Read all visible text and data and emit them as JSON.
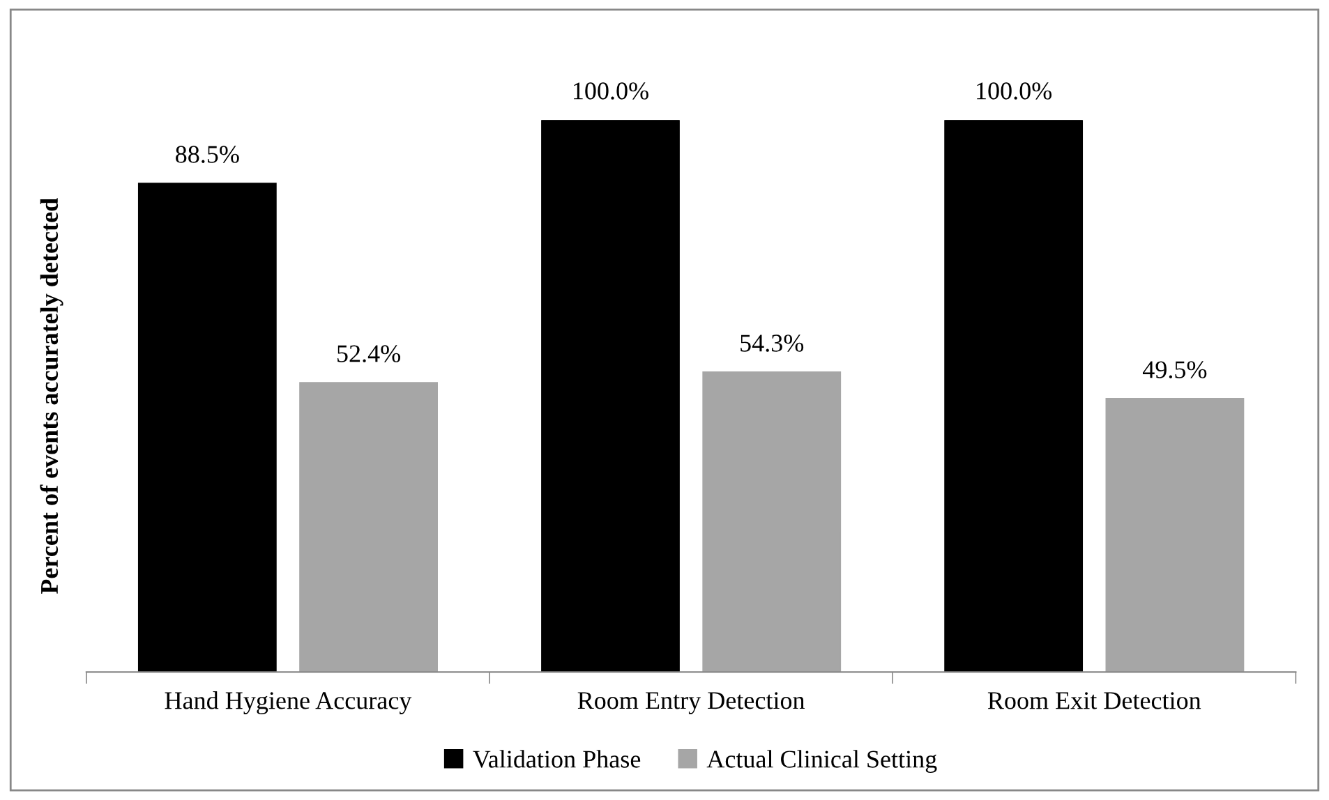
{
  "chart_data": {
    "type": "bar",
    "ylabel": "Percent of events accurately detected",
    "categories": [
      "Hand Hygiene Accuracy",
      "Room Entry Detection",
      "Room Exit Detection"
    ],
    "series": [
      {
        "name": "Validation Phase",
        "color": "#000000",
        "values": [
          88.5,
          100.0,
          100.0
        ],
        "value_labels": [
          "88.5%",
          "100.0%",
          "100.0%"
        ]
      },
      {
        "name": "Actual Clinical Setting",
        "color": "#a6a6a6",
        "values": [
          52.4,
          54.3,
          49.5
        ],
        "value_labels": [
          "52.4%",
          "54.3%",
          "49.5%"
        ]
      }
    ],
    "legend": "bottom",
    "grid": false
  }
}
